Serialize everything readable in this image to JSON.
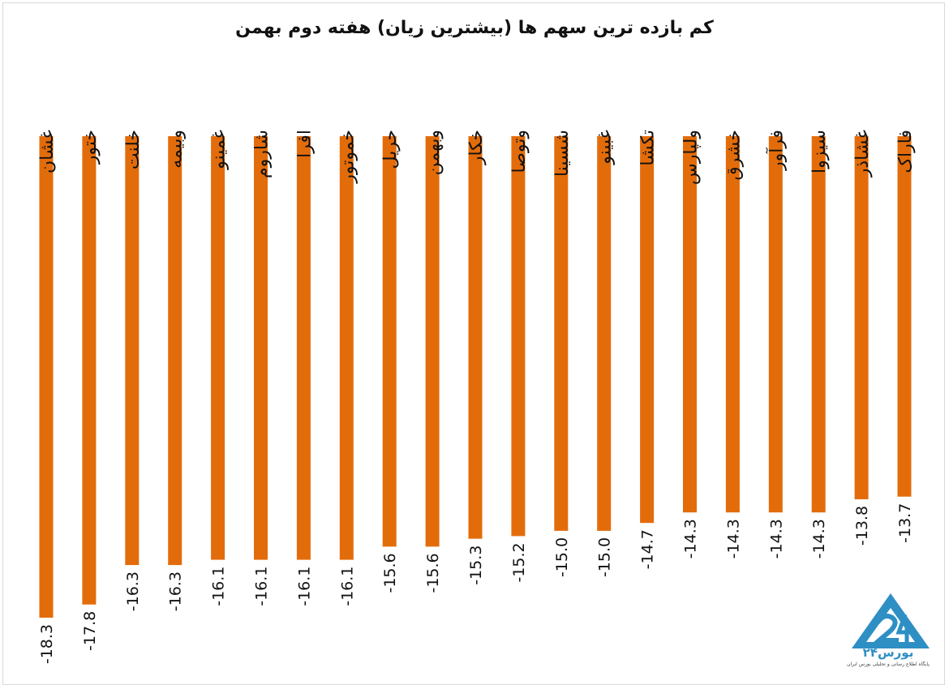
{
  "chart_data": {
    "type": "bar",
    "title": "کم بازده ترین سهم ها (بیشترین زیان) هفته دوم بهمن",
    "categories": [
      "غشان",
      "ختور",
      "خلنت",
      "وبیمه",
      "غمینو",
      "شاروم",
      "افرا",
      "خموتور",
      "حریل",
      "وبهمن",
      "خکار",
      "وتوصا",
      "شسینا",
      "غبینو",
      "تکشا",
      "ولپارس",
      "خشرق",
      "فرآور",
      "سیزوا",
      "غشاذر",
      "فاراک"
    ],
    "values": [
      -18.3,
      -17.8,
      -16.3,
      -16.3,
      -16.1,
      -16.1,
      -16.1,
      -16.1,
      -15.6,
      -15.6,
      -15.3,
      -15.2,
      -15.0,
      -15.0,
      -14.7,
      -14.3,
      -14.3,
      -14.3,
      -14.3,
      -13.8,
      -13.7
    ],
    "value_labels": [
      "-18.3",
      "-17.8",
      "-16.3",
      "-16.3",
      "-16.1",
      "-16.1",
      "-16.1",
      "-16.1",
      "-15.6",
      "-15.6",
      "-15.3",
      "-15.2",
      "-15.0",
      "-15.0",
      "-14.7",
      "-14.3",
      "-14.3",
      "-14.3",
      "-14.3",
      "-13.8",
      "-13.7"
    ],
    "bar_color": "#e36c0a",
    "ylim": [
      -18.3,
      0
    ],
    "grid": false,
    "legend": "none"
  },
  "logo": {
    "name": "بورس۲۴",
    "tagline": "پایگاه اطلاع رسانی و تحلیلی بورس ایران",
    "color": "#2e8fc4",
    "icon": "bourse24-logo-icon"
  }
}
